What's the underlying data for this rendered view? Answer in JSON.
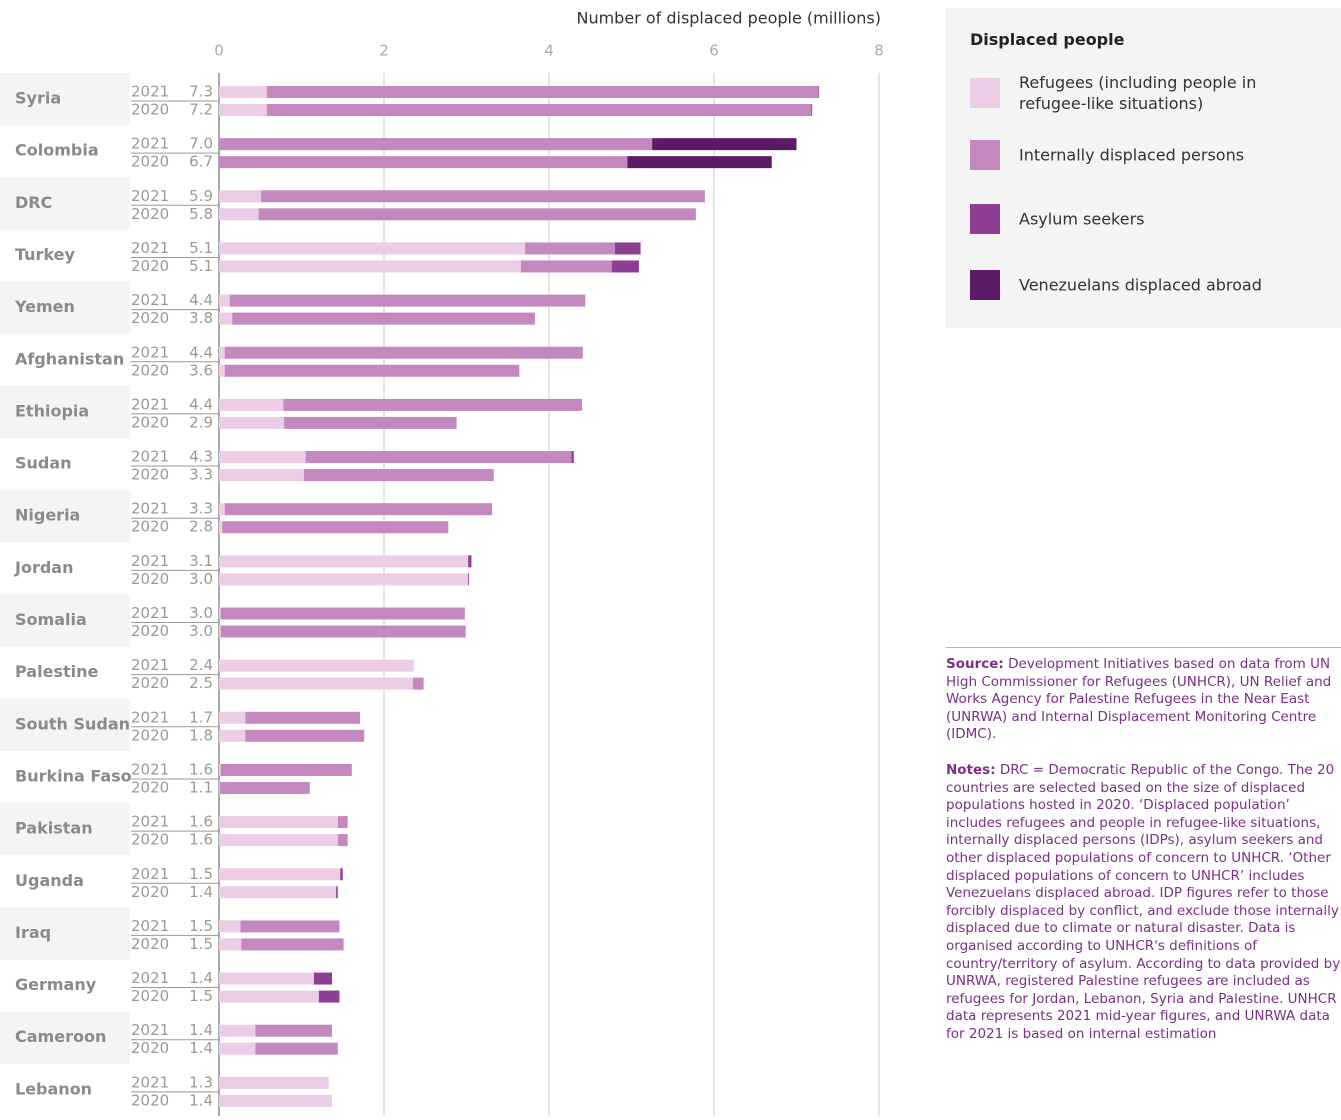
{
  "chart_data": {
    "type": "stacked-hbar",
    "x_label": "Number of displaced people (millions)",
    "xlim": [
      0,
      8
    ],
    "xticks": [
      0,
      2,
      4,
      6,
      8
    ],
    "grid": true,
    "categories": [
      "Syria",
      "Colombia",
      "DRC",
      "Turkey",
      "Yemen",
      "Afghanistan",
      "Ethiopia",
      "Sudan",
      "Nigeria",
      "Jordan",
      "Somalia",
      "Palestine",
      "South Sudan",
      "Burkina Faso",
      "Pakistan",
      "Uganda",
      "Iraq",
      "Germany",
      "Cameroon",
      "Lebanon"
    ],
    "years": [
      "2021",
      "2020"
    ],
    "series": [
      {
        "name": "Refugees (including people in refugee-like situations)",
        "color": "#eccde6",
        "values": [
          [
            0.58,
            0.58
          ],
          [
            0,
            0
          ],
          [
            0.51,
            0.48
          ],
          [
            3.71,
            3.66
          ],
          [
            0.13,
            0.16
          ],
          [
            0.07,
            0.07
          ],
          [
            0.78,
            0.79
          ],
          [
            1.05,
            1.03
          ],
          [
            0.07,
            0.04
          ],
          [
            3.02,
            3.02
          ],
          [
            0.02,
            0.02
          ],
          [
            2.36,
            2.35
          ],
          [
            0.32,
            0.32
          ],
          [
            0.02,
            0.01
          ],
          [
            1.44,
            1.44
          ],
          [
            1.47,
            1.42
          ],
          [
            0.26,
            0.27
          ],
          [
            1.15,
            1.21
          ],
          [
            0.44,
            0.44
          ],
          [
            1.33,
            1.37
          ]
        ]
      },
      {
        "name": "Internally displaced persons",
        "color": "#c389bf",
        "values": [
          [
            6.68,
            6.6
          ],
          [
            5.25,
            4.95
          ],
          [
            5.38,
            5.3
          ],
          [
            1.09,
            1.1
          ],
          [
            4.31,
            3.67
          ],
          [
            4.34,
            3.57
          ],
          [
            3.62,
            2.09
          ],
          [
            3.22,
            2.3
          ],
          [
            3.24,
            2.74
          ],
          [
            0,
            0
          ],
          [
            2.96,
            2.97
          ],
          [
            0,
            0.13
          ],
          [
            1.39,
            1.44
          ],
          [
            1.59,
            1.09
          ],
          [
            0.12,
            0.12
          ],
          [
            0,
            0
          ],
          [
            1.2,
            1.24
          ],
          [
            0,
            0
          ],
          [
            0.93,
            1.0
          ],
          [
            0,
            0
          ]
        ]
      },
      {
        "name": "Asylum seekers",
        "color": "#8e3e93",
        "values": [
          [
            0.01,
            0.01
          ],
          [
            0,
            0
          ],
          [
            0,
            0
          ],
          [
            0.31,
            0.33
          ],
          [
            0,
            0
          ],
          [
            0,
            0
          ],
          [
            0,
            0
          ],
          [
            0.03,
            0
          ],
          [
            0,
            0
          ],
          [
            0.04,
            0.01
          ],
          [
            0,
            0
          ],
          [
            0,
            0
          ],
          [
            0,
            0
          ],
          [
            0,
            0
          ],
          [
            0,
            0
          ],
          [
            0.03,
            0.02
          ],
          [
            0,
            0
          ],
          [
            0.22,
            0.25
          ],
          [
            0,
            0
          ],
          [
            0,
            0
          ]
        ]
      },
      {
        "name": "Venezuelans displaced abroad",
        "color": "#5a1a66",
        "values": [
          [
            0,
            0
          ],
          [
            1.75,
            1.75
          ],
          [
            0,
            0
          ],
          [
            0,
            0
          ],
          [
            0,
            0
          ],
          [
            0,
            0
          ],
          [
            0,
            0
          ],
          [
            0,
            0
          ],
          [
            0,
            0
          ],
          [
            0,
            0
          ],
          [
            0,
            0
          ],
          [
            0,
            0
          ],
          [
            0,
            0
          ],
          [
            0,
            0
          ],
          [
            0,
            0
          ],
          [
            0,
            0
          ],
          [
            0,
            0
          ],
          [
            0,
            0
          ],
          [
            0,
            0
          ],
          [
            0,
            0
          ]
        ]
      }
    ],
    "value_labels": [
      [
        "7.3",
        "7.2"
      ],
      [
        "7.0",
        "6.7"
      ],
      [
        "5.9",
        "5.8"
      ],
      [
        "5.1",
        "5.1"
      ],
      [
        "4.4",
        "3.8"
      ],
      [
        "4.4",
        "3.6"
      ],
      [
        "4.4",
        "2.9"
      ],
      [
        "4.3",
        "3.3"
      ],
      [
        "3.3",
        "2.8"
      ],
      [
        "3.1",
        "3.0"
      ],
      [
        "3.0",
        "3.0"
      ],
      [
        "2.4",
        "2.5"
      ],
      [
        "1.7",
        "1.8"
      ],
      [
        "1.6",
        "1.1"
      ],
      [
        "1.6",
        "1.6"
      ],
      [
        "1.5",
        "1.4"
      ],
      [
        "1.5",
        "1.5"
      ],
      [
        "1.4",
        "1.5"
      ],
      [
        "1.4",
        "1.4"
      ],
      [
        "1.3",
        "1.4"
      ]
    ],
    "legend_title": "Displaced people",
    "source": {
      "label": "Source:",
      "text": "Development Initiatives based on data from UN High Commissioner for Refugees (UNHCR), UN Relief and Works Agency for Palestine Refugees in the Near East (UNRWA) and Internal Displacement Monitoring Centre (IDMC)."
    },
    "notes": {
      "label": "Notes:",
      "text": "DRC = Democratic Republic of the Congo. The 20 countries are selected based on the size of displaced populations hosted in 2020. ‘Displaced population’ includes refugees and people in refugee-like situations, internally displaced persons (IDPs), asylum seekers and other displaced populations of concern to UNHCR. ‘Other displaced populations of concern to UNHCR’ includes Venezuelans displaced abroad. IDP figures refer to those forcibly displaced by conflict, and exclude those internally displaced due to climate or natural disaster. Data is organised according to UNHCR's definitions of country/territory of asylum. According to data provided by UNRWA, registered Palestine refugees are included as refugees for Jordan, Lebanon, Syria and Palestine. UNHCR data represents 2021 mid-year figures, and UNRWA data for 2021 is based on internal estimation"
    }
  }
}
